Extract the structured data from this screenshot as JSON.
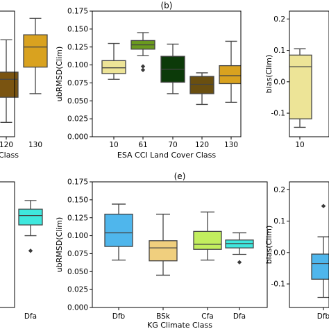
{
  "chart_data": [
    {
      "id": "left-top",
      "type": "box",
      "title": "",
      "xlabel": "Class",
      "ylabel": "",
      "categories": [
        "120",
        "130"
      ],
      "colors": [
        "#7a5411",
        "#d9a21f"
      ],
      "boxes": [
        {
          "min": 0.02,
          "q1": 0.055,
          "median": 0.08,
          "q3": 0.09,
          "max": 0.135,
          "outliers": []
        },
        {
          "min": 0.06,
          "q1": 0.097,
          "median": 0.125,
          "q3": 0.142,
          "max": 0.165,
          "outliers": []
        }
      ],
      "yticks": [],
      "ytick_labels": []
    },
    {
      "id": "b",
      "type": "box",
      "title": "(b)",
      "xlabel": "ESA CCI Land Cover Class",
      "ylabel": "ubRMSD(Clim)",
      "categories": [
        "10",
        "61",
        "70",
        "120",
        "130"
      ],
      "colors": [
        "#ede497",
        "#6a9a1e",
        "#0c3a09",
        "#6a4f10",
        "#d9a21f"
      ],
      "boxes": [
        {
          "min": 0.08,
          "q1": 0.088,
          "median": 0.096,
          "q3": 0.106,
          "max": 0.13,
          "outliers": []
        },
        {
          "min": 0.113,
          "q1": 0.122,
          "median": 0.128,
          "q3": 0.134,
          "max": 0.145,
          "outliers": [
            0.093,
            0.098
          ]
        },
        {
          "min": 0.06,
          "q1": 0.076,
          "median": 0.094,
          "q3": 0.112,
          "max": 0.129,
          "outliers": []
        },
        {
          "min": 0.045,
          "q1": 0.06,
          "median": 0.073,
          "q3": 0.084,
          "max": 0.089,
          "outliers": []
        },
        {
          "min": 0.048,
          "q1": 0.074,
          "median": 0.085,
          "q3": 0.099,
          "max": 0.133,
          "outliers": []
        }
      ],
      "ylim": [
        0.0,
        0.175
      ],
      "yticks": [
        0.0,
        0.025,
        0.05,
        0.075,
        0.1,
        0.125,
        0.15,
        0.175
      ],
      "ytick_labels": [
        "0.000",
        "0.025",
        "0.050",
        "0.075",
        "0.100",
        "0.125",
        "0.150",
        "0.175"
      ]
    },
    {
      "id": "right-top",
      "type": "box",
      "title": "",
      "xlabel": "",
      "ylabel": "bias(Clim)",
      "categories": [
        "10"
      ],
      "colors": [
        "#ede497"
      ],
      "boxes": [
        {
          "min": -0.145,
          "q1": -0.118,
          "median": 0.048,
          "q3": 0.085,
          "max": 0.105,
          "outliers": []
        }
      ],
      "ylim": [
        -0.175,
        0.225
      ],
      "yticks": [
        -0.1,
        0.0,
        0.1,
        0.2
      ],
      "ytick_labels": [
        "-0.1",
        "0.0",
        "0.1",
        "0.2"
      ]
    },
    {
      "id": "left-bottom",
      "type": "box",
      "title": "",
      "xlabel": "",
      "ylabel": "",
      "categories": [
        "Dfa"
      ],
      "colors": [
        "#3fe8de"
      ],
      "boxes": [
        {
          "min": 0.1,
          "q1": 0.115,
          "median": 0.128,
          "q3": 0.137,
          "max": 0.149,
          "outliers": [
            0.079
          ]
        }
      ],
      "yticks": [],
      "ytick_labels": []
    },
    {
      "id": "e",
      "type": "box",
      "title": "(e)",
      "xlabel": "KG Climate Class",
      "ylabel": "ubRMSD(Clim)",
      "categories": [
        "Dfb",
        "BSk",
        "Cfa",
        "Dfa"
      ],
      "colors": [
        "#4fb6ec",
        "#f0cf7e",
        "#c2ee5e",
        "#3fe8de"
      ],
      "boxes": [
        {
          "min": 0.066,
          "q1": 0.085,
          "median": 0.104,
          "q3": 0.13,
          "max": 0.144,
          "outliers": []
        },
        {
          "min": 0.045,
          "q1": 0.065,
          "median": 0.083,
          "q3": 0.093,
          "max": 0.13,
          "outliers": []
        },
        {
          "min": 0.066,
          "q1": 0.081,
          "median": 0.088,
          "q3": 0.106,
          "max": 0.133,
          "outliers": []
        },
        {
          "min": 0.074,
          "q1": 0.083,
          "median": 0.089,
          "q3": 0.094,
          "max": 0.104,
          "outliers": [
            0.063
          ]
        }
      ],
      "ylim": [
        0.0,
        0.175
      ],
      "yticks": [
        0.0,
        0.025,
        0.05,
        0.075,
        0.1,
        0.125,
        0.15,
        0.175
      ],
      "ytick_labels": [
        "0.000",
        "0.025",
        "0.050",
        "0.075",
        "0.100",
        "0.125",
        "0.150",
        "0.175"
      ]
    },
    {
      "id": "right-bottom",
      "type": "box",
      "title": "",
      "xlabel": "",
      "ylabel": "bias(Clim)",
      "categories": [
        "Dfb"
      ],
      "colors": [
        "#4fb6ec"
      ],
      "boxes": [
        {
          "min": -0.143,
          "q1": -0.085,
          "median": -0.035,
          "q3": -0.005,
          "max": 0.05,
          "outliers": [
            0.148
          ]
        }
      ],
      "ylim": [
        -0.175,
        0.225
      ],
      "yticks": [
        -0.1,
        0.0,
        0.1,
        0.2
      ],
      "ytick_labels": [
        "-0.1",
        "0.0",
        "0.1",
        "0.2"
      ]
    }
  ]
}
